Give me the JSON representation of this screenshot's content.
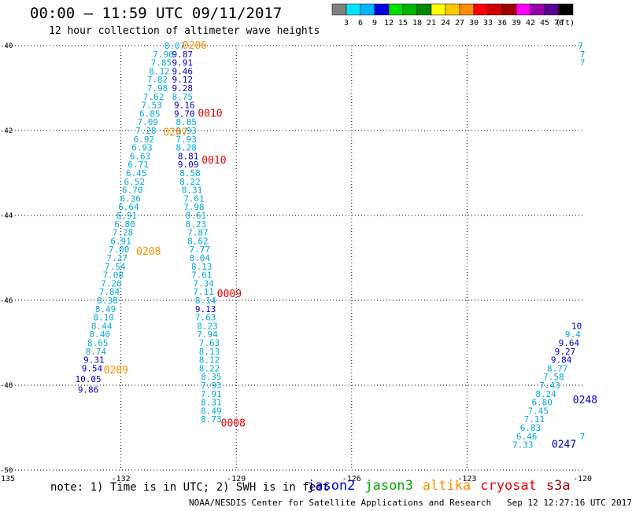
{
  "header": {
    "title": "00:00 – 11:59 UTC 09/11/2017",
    "subtitle": "12 hour collection of altimeter wave heights"
  },
  "colorbar": {
    "colors": [
      "#808080",
      "#00e5ff",
      "#00b4ff",
      "#0000e0",
      "#00e000",
      "#00b400",
      "#008800",
      "#ffff00",
      "#ffc800",
      "#ff8c00",
      "#ff0000",
      "#d20000",
      "#a00000",
      "#ff00ff",
      "#9900aa",
      "#5a0090",
      "#000000"
    ],
    "labels": [
      "3",
      "6",
      "9",
      "12",
      "15",
      "18",
      "21",
      "24",
      "27",
      "30",
      "33",
      "36",
      "39",
      "42",
      "45",
      "70"
    ],
    "unit": "(ft)"
  },
  "note": "note: 1) Time is in UTC; 2) SWH is in feet",
  "legend": [
    {
      "label": "jason2",
      "color": "#0000cc"
    },
    {
      "label": "jason3",
      "color": "#00aa00"
    },
    {
      "label": "altika",
      "color": "#ff8c00"
    },
    {
      "label": "cryosat",
      "color": "#ee0000"
    },
    {
      "label": "s3a",
      "color": "#aa0000"
    }
  ],
  "footer": "NOAA/NESDIS Center for Satellite Applications and Research   Sep 12 12:27:16 UTC 2017",
  "chart_data": {
    "type": "scatter",
    "xlim": [
      -135,
      -120
    ],
    "ylim": [
      -50,
      -40
    ],
    "x_ticks": [
      -135,
      -132,
      -129,
      -126,
      -123,
      -120
    ],
    "x_tick_labels": [
      "-135",
      "-132",
      "-129",
      "-126",
      "-123",
      "-120"
    ],
    "y_ticks": [
      -40,
      -42,
      -44,
      -46,
      -48,
      -50
    ],
    "y_tick_labels": [
      "-40",
      "-42",
      "-44",
      "-46",
      "-48",
      "-50"
    ],
    "grid": true,
    "colors": {
      "light": "#00aadd",
      "dark": "#0000cc",
      "orange": "#ff8c00",
      "red": "#ee0000"
    },
    "points": [
      {
        "lon": -130.6,
        "lat": -40.0,
        "v": "8.07",
        "c": "light"
      },
      {
        "lon": -130.9,
        "lat": -40.2,
        "v": "7.96",
        "c": "light"
      },
      {
        "lon": -130.4,
        "lat": -40.2,
        "v": "9.87",
        "c": "dark"
      },
      {
        "lon": -130.95,
        "lat": -40.4,
        "v": "7.85",
        "c": "light"
      },
      {
        "lon": -130.4,
        "lat": -40.4,
        "v": "9.91",
        "c": "dark"
      },
      {
        "lon": -131.0,
        "lat": -40.6,
        "v": "8.12",
        "c": "light"
      },
      {
        "lon": -130.4,
        "lat": -40.6,
        "v": "9.46",
        "c": "dark"
      },
      {
        "lon": -131.05,
        "lat": -40.8,
        "v": "7.82",
        "c": "light"
      },
      {
        "lon": -130.4,
        "lat": -40.8,
        "v": "9.12",
        "c": "dark"
      },
      {
        "lon": -131.05,
        "lat": -41.0,
        "v": "7.98",
        "c": "light"
      },
      {
        "lon": -130.4,
        "lat": -41.0,
        "v": "9.28",
        "c": "dark"
      },
      {
        "lon": -131.15,
        "lat": -41.2,
        "v": "7.62",
        "c": "light"
      },
      {
        "lon": -130.4,
        "lat": -41.2,
        "v": "8.75",
        "c": "light"
      },
      {
        "lon": -131.2,
        "lat": -41.4,
        "v": "7.53",
        "c": "light"
      },
      {
        "lon": -130.35,
        "lat": -41.4,
        "v": "9.16",
        "c": "dark"
      },
      {
        "lon": -131.25,
        "lat": -41.6,
        "v": "6.85",
        "c": "light"
      },
      {
        "lon": -130.35,
        "lat": -41.6,
        "v": "9.70",
        "c": "dark"
      },
      {
        "lon": -131.3,
        "lat": -41.8,
        "v": "7.09",
        "c": "light"
      },
      {
        "lon": -130.3,
        "lat": -41.8,
        "v": "8.85",
        "c": "light"
      },
      {
        "lon": -131.35,
        "lat": -42.0,
        "v": "7.28",
        "c": "light"
      },
      {
        "lon": -130.3,
        "lat": -42.0,
        "v": "8.93",
        "c": "light"
      },
      {
        "lon": -131.4,
        "lat": -42.2,
        "v": "6.92",
        "c": "light"
      },
      {
        "lon": -130.3,
        "lat": -42.2,
        "v": "7.93",
        "c": "light"
      },
      {
        "lon": -131.45,
        "lat": -42.4,
        "v": "6.93",
        "c": "light"
      },
      {
        "lon": -130.3,
        "lat": -42.4,
        "v": "8.28",
        "c": "light"
      },
      {
        "lon": -131.5,
        "lat": -42.6,
        "v": "6.63",
        "c": "light"
      },
      {
        "lon": -130.25,
        "lat": -42.6,
        "v": "8.81",
        "c": "dark"
      },
      {
        "lon": -131.55,
        "lat": -42.8,
        "v": "6.71",
        "c": "light"
      },
      {
        "lon": -130.25,
        "lat": -42.8,
        "v": "9.09",
        "c": "dark"
      },
      {
        "lon": -131.6,
        "lat": -43.0,
        "v": "6.45",
        "c": "light"
      },
      {
        "lon": -130.2,
        "lat": -43.0,
        "v": "8.58",
        "c": "light"
      },
      {
        "lon": -131.65,
        "lat": -43.2,
        "v": "6.52",
        "c": "light"
      },
      {
        "lon": -130.2,
        "lat": -43.2,
        "v": "8.22",
        "c": "light"
      },
      {
        "lon": -131.7,
        "lat": -43.4,
        "v": "6.70",
        "c": "light"
      },
      {
        "lon": -130.15,
        "lat": -43.4,
        "v": "8.31",
        "c": "light"
      },
      {
        "lon": -131.75,
        "lat": -43.6,
        "v": "6.36",
        "c": "light"
      },
      {
        "lon": -130.1,
        "lat": -43.6,
        "v": "7.61",
        "c": "light"
      },
      {
        "lon": -131.8,
        "lat": -43.8,
        "v": "6.64",
        "c": "light"
      },
      {
        "lon": -130.1,
        "lat": -43.8,
        "v": "7.98",
        "c": "light"
      },
      {
        "lon": -131.85,
        "lat": -44.0,
        "v": "6.91",
        "c": "light"
      },
      {
        "lon": -130.05,
        "lat": -44.0,
        "v": "8.61",
        "c": "light"
      },
      {
        "lon": -131.9,
        "lat": -44.2,
        "v": "6.80",
        "c": "light"
      },
      {
        "lon": -130.05,
        "lat": -44.2,
        "v": "8.23",
        "c": "light"
      },
      {
        "lon": -131.95,
        "lat": -44.4,
        "v": "7.28",
        "c": "light"
      },
      {
        "lon": -130.0,
        "lat": -44.4,
        "v": "7.87",
        "c": "light"
      },
      {
        "lon": -132.0,
        "lat": -44.6,
        "v": "6.91",
        "c": "light"
      },
      {
        "lon": -130.0,
        "lat": -44.6,
        "v": "8.62",
        "c": "light"
      },
      {
        "lon": -132.05,
        "lat": -44.8,
        "v": "7.00",
        "c": "light"
      },
      {
        "lon": -129.95,
        "lat": -44.8,
        "v": "7.77",
        "c": "light"
      },
      {
        "lon": -132.1,
        "lat": -45.0,
        "v": "7.27",
        "c": "light"
      },
      {
        "lon": -129.95,
        "lat": -45.0,
        "v": "8.04",
        "c": "light"
      },
      {
        "lon": -132.15,
        "lat": -45.2,
        "v": "7.54",
        "c": "light"
      },
      {
        "lon": -129.9,
        "lat": -45.2,
        "v": "8.13",
        "c": "light"
      },
      {
        "lon": -132.2,
        "lat": -45.4,
        "v": "7.08",
        "c": "light"
      },
      {
        "lon": -129.9,
        "lat": -45.4,
        "v": "7.61",
        "c": "light"
      },
      {
        "lon": -132.25,
        "lat": -45.6,
        "v": "7.26",
        "c": "light"
      },
      {
        "lon": -129.85,
        "lat": -45.6,
        "v": "7.34",
        "c": "light"
      },
      {
        "lon": -132.3,
        "lat": -45.8,
        "v": "7.84",
        "c": "light"
      },
      {
        "lon": -129.85,
        "lat": -45.8,
        "v": "7.11",
        "c": "light"
      },
      {
        "lon": -132.35,
        "lat": -46.0,
        "v": "8.38",
        "c": "light"
      },
      {
        "lon": -129.8,
        "lat": -46.0,
        "v": "8.14",
        "c": "light"
      },
      {
        "lon": -132.4,
        "lat": -46.2,
        "v": "8.49",
        "c": "light"
      },
      {
        "lon": -129.8,
        "lat": -46.2,
        "v": "9.13",
        "c": "dark"
      },
      {
        "lon": -132.45,
        "lat": -46.4,
        "v": "8.10",
        "c": "light"
      },
      {
        "lon": -129.8,
        "lat": -46.4,
        "v": "7.63",
        "c": "light"
      },
      {
        "lon": -132.5,
        "lat": -46.6,
        "v": "8.44",
        "c": "light"
      },
      {
        "lon": -129.75,
        "lat": -46.6,
        "v": "8.23",
        "c": "light"
      },
      {
        "lon": -132.55,
        "lat": -46.8,
        "v": "8.40",
        "c": "light"
      },
      {
        "lon": -129.75,
        "lat": -46.8,
        "v": "7.94",
        "c": "light"
      },
      {
        "lon": -132.6,
        "lat": -47.0,
        "v": "8.65",
        "c": "light"
      },
      {
        "lon": -129.7,
        "lat": -47.0,
        "v": "7.63",
        "c": "light"
      },
      {
        "lon": -132.65,
        "lat": -47.2,
        "v": "8.74",
        "c": "light"
      },
      {
        "lon": -129.7,
        "lat": -47.2,
        "v": "8.13",
        "c": "light"
      },
      {
        "lon": -132.7,
        "lat": -47.4,
        "v": "9.31",
        "c": "dark"
      },
      {
        "lon": -129.7,
        "lat": -47.4,
        "v": "8.12",
        "c": "light"
      },
      {
        "lon": -132.75,
        "lat": -47.6,
        "v": "9.54",
        "c": "dark"
      },
      {
        "lon": -129.7,
        "lat": -47.6,
        "v": "8.22",
        "c": "light"
      },
      {
        "lon": -132.85,
        "lat": -47.85,
        "v": "10.05",
        "c": "dark"
      },
      {
        "lon": -129.65,
        "lat": -47.8,
        "v": "8.35",
        "c": "light"
      },
      {
        "lon": -132.85,
        "lat": -48.1,
        "v": "9.86",
        "c": "dark"
      },
      {
        "lon": -129.65,
        "lat": -48.0,
        "v": "7.93",
        "c": "light"
      },
      {
        "lon": -129.65,
        "lat": -48.2,
        "v": "7.91",
        "c": "light"
      },
      {
        "lon": -129.65,
        "lat": -48.4,
        "v": "8.31",
        "c": "light"
      },
      {
        "lon": -129.65,
        "lat": -48.6,
        "v": "8.49",
        "c": "light"
      },
      {
        "lon": -129.65,
        "lat": -48.8,
        "v": "8.73",
        "c": "light"
      },
      {
        "lon": -120.05,
        "lat": -40.0,
        "v": "7",
        "c": "light"
      },
      {
        "lon": -120.0,
        "lat": -40.2,
        "v": "7",
        "c": "light"
      },
      {
        "lon": -120.0,
        "lat": -40.4,
        "v": "7",
        "c": "light"
      },
      {
        "lon": -120.15,
        "lat": -46.6,
        "v": "10",
        "c": "dark"
      },
      {
        "lon": -120.25,
        "lat": -46.8,
        "v": "9.4",
        "c": "light"
      },
      {
        "lon": -120.35,
        "lat": -47.0,
        "v": "9.64",
        "c": "dark"
      },
      {
        "lon": -120.45,
        "lat": -47.2,
        "v": "9.27",
        "c": "dark"
      },
      {
        "lon": -120.55,
        "lat": -47.4,
        "v": "9.84",
        "c": "dark"
      },
      {
        "lon": -120.65,
        "lat": -47.6,
        "v": "8.77",
        "c": "light"
      },
      {
        "lon": -120.75,
        "lat": -47.8,
        "v": "7.58",
        "c": "light"
      },
      {
        "lon": -120.85,
        "lat": -48.0,
        "v": "7.43",
        "c": "light"
      },
      {
        "lon": -120.95,
        "lat": -48.2,
        "v": "8.24",
        "c": "light"
      },
      {
        "lon": -121.05,
        "lat": -48.4,
        "v": "6.80",
        "c": "light"
      },
      {
        "lon": -121.15,
        "lat": -48.6,
        "v": "7.45",
        "c": "light"
      },
      {
        "lon": -121.25,
        "lat": -48.8,
        "v": "7.11",
        "c": "light"
      },
      {
        "lon": -121.35,
        "lat": -49.0,
        "v": "6.83",
        "c": "light"
      },
      {
        "lon": -121.45,
        "lat": -49.2,
        "v": "6.46",
        "c": "light"
      },
      {
        "lon": -121.55,
        "lat": -49.4,
        "v": "7.33",
        "c": "light"
      },
      {
        "lon": -120.0,
        "lat": -49.2,
        "v": "7",
        "c": "light"
      }
    ],
    "annotations": [
      {
        "lon": -130.4,
        "lat": -40.0,
        "text": "0206",
        "c": "orange"
      },
      {
        "lon": -130.0,
        "lat": -41.6,
        "text": "0010",
        "c": "red"
      },
      {
        "lon": -130.9,
        "lat": -42.05,
        "text": "0207",
        "c": "orange"
      },
      {
        "lon": -129.9,
        "lat": -42.7,
        "text": "0010",
        "c": "red"
      },
      {
        "lon": -131.6,
        "lat": -44.85,
        "text": "0208",
        "c": "orange"
      },
      {
        "lon": -129.5,
        "lat": -45.85,
        "text": "0009",
        "c": "red"
      },
      {
        "lon": -132.45,
        "lat": -47.65,
        "text": "0209",
        "c": "orange"
      },
      {
        "lon": -129.4,
        "lat": -48.9,
        "text": "0008",
        "c": "red"
      },
      {
        "lon": -120.8,
        "lat": -49.4,
        "text": "0247",
        "c": "dark"
      },
      {
        "lon": -120.25,
        "lat": -48.35,
        "text": "0248",
        "c": "dark"
      }
    ]
  }
}
